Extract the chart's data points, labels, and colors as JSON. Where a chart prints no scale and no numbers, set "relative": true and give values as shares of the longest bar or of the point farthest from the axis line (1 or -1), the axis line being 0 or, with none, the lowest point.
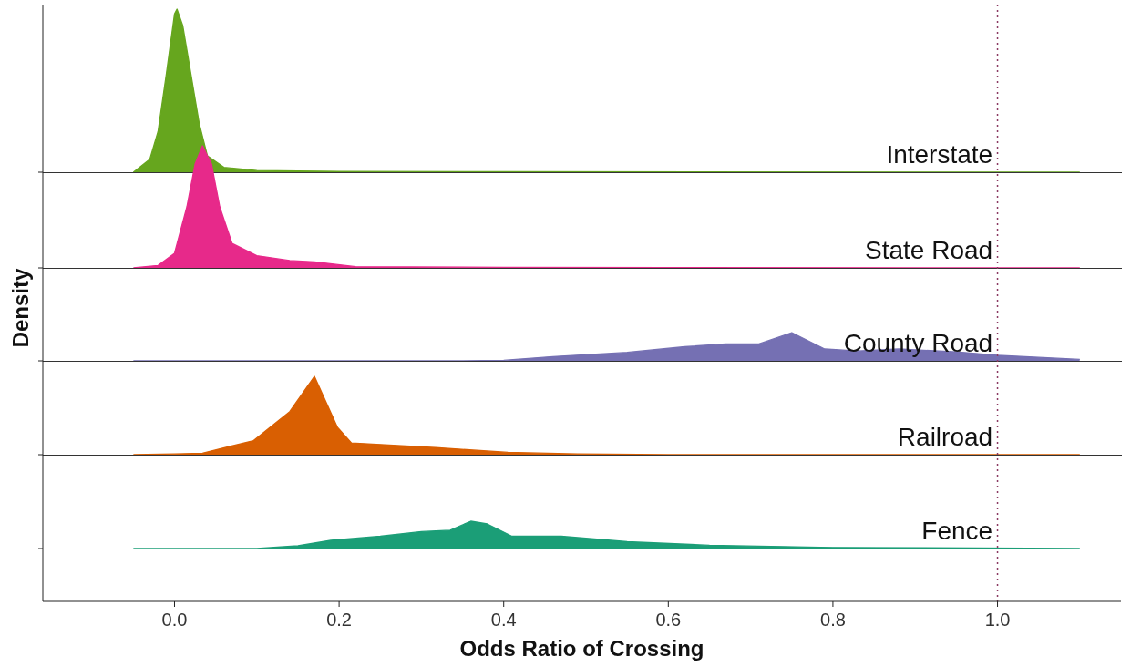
{
  "chart_data": [
    {
      "type": "area",
      "title": "Interstate",
      "relative": true,
      "color": "#66a61e",
      "xlim": [
        -0.16,
        1.15
      ],
      "tick_labels": false,
      "x": [
        -0.05,
        -0.03,
        -0.02,
        -0.01,
        0.0,
        0.003,
        0.01,
        0.02,
        0.03,
        0.04,
        0.06,
        0.1,
        0.2,
        0.4,
        1.1
      ],
      "values": [
        0,
        0.08,
        0.25,
        0.6,
        0.97,
        1.0,
        0.9,
        0.6,
        0.3,
        0.1,
        0.03,
        0.01,
        0.005,
        0.003,
        0
      ]
    },
    {
      "type": "area",
      "title": "State Road",
      "relative": true,
      "color": "#e7298a",
      "xlim": [
        -0.16,
        1.15
      ],
      "tick_labels": false,
      "x": [
        -0.05,
        -0.02,
        0.0,
        0.015,
        0.025,
        0.034,
        0.045,
        0.055,
        0.07,
        0.1,
        0.14,
        0.17,
        0.22,
        0.4,
        0.6,
        1.1
      ],
      "values": [
        0,
        0.02,
        0.12,
        0.5,
        0.85,
        1.0,
        0.85,
        0.5,
        0.2,
        0.1,
        0.06,
        0.05,
        0.01,
        0.005,
        0.002,
        0
      ]
    },
    {
      "type": "area",
      "title": "County Road",
      "relative": true,
      "color": "#7570b3",
      "xlim": [
        -0.16,
        1.15
      ],
      "tick_labels": false,
      "ylabel": "Density",
      "x": [
        -0.05,
        0.35,
        0.4,
        0.46,
        0.55,
        0.62,
        0.67,
        0.71,
        0.75,
        0.79,
        0.83,
        0.88,
        0.95,
        1.0,
        1.1
      ],
      "values": [
        0,
        0,
        0.02,
        0.15,
        0.3,
        0.5,
        0.6,
        0.6,
        1.0,
        0.42,
        0.35,
        0.42,
        0.32,
        0.2,
        0.05
      ]
    },
    {
      "type": "area",
      "title": "Railroad",
      "relative": true,
      "color": "#d95f02",
      "xlim": [
        -0.16,
        1.15
      ],
      "tick_labels": false,
      "x": [
        -0.05,
        0.0,
        0.034,
        0.096,
        0.14,
        0.17,
        0.198,
        0.215,
        0.317,
        0.405,
        0.49,
        0.6,
        1.1
      ],
      "values": [
        0,
        0.01,
        0.02,
        0.18,
        0.55,
        1.0,
        0.35,
        0.15,
        0.09,
        0.03,
        0.01,
        0,
        0
      ]
    },
    {
      "type": "area",
      "title": "Fence",
      "relative": true,
      "color": "#1b9e77",
      "xlim": [
        -0.16,
        1.15
      ],
      "tick_labels": "x",
      "xticks": [
        {
          "value": 0,
          "label": "0.0"
        },
        0.2,
        0.4,
        0.6,
        0.8,
        {
          "value": 1,
          "label": "1.0"
        }
      ],
      "xlabel": "Odds Ratio of Crossing",
      "ref_lines": [
        {
          "axis": "x",
          "value": 1.0,
          "color": "#8b3a62",
          "line_style": "dotted"
        }
      ],
      "x": [
        -0.05,
        0.1,
        0.15,
        0.19,
        0.25,
        0.3,
        0.335,
        0.36,
        0.38,
        0.41,
        0.47,
        0.55,
        0.65,
        0.8,
        1.1
      ],
      "values": [
        0,
        0,
        0.1,
        0.3,
        0.45,
        0.62,
        0.67,
        1.0,
        0.9,
        0.45,
        0.45,
        0.25,
        0.12,
        0.04,
        0
      ]
    }
  ]
}
